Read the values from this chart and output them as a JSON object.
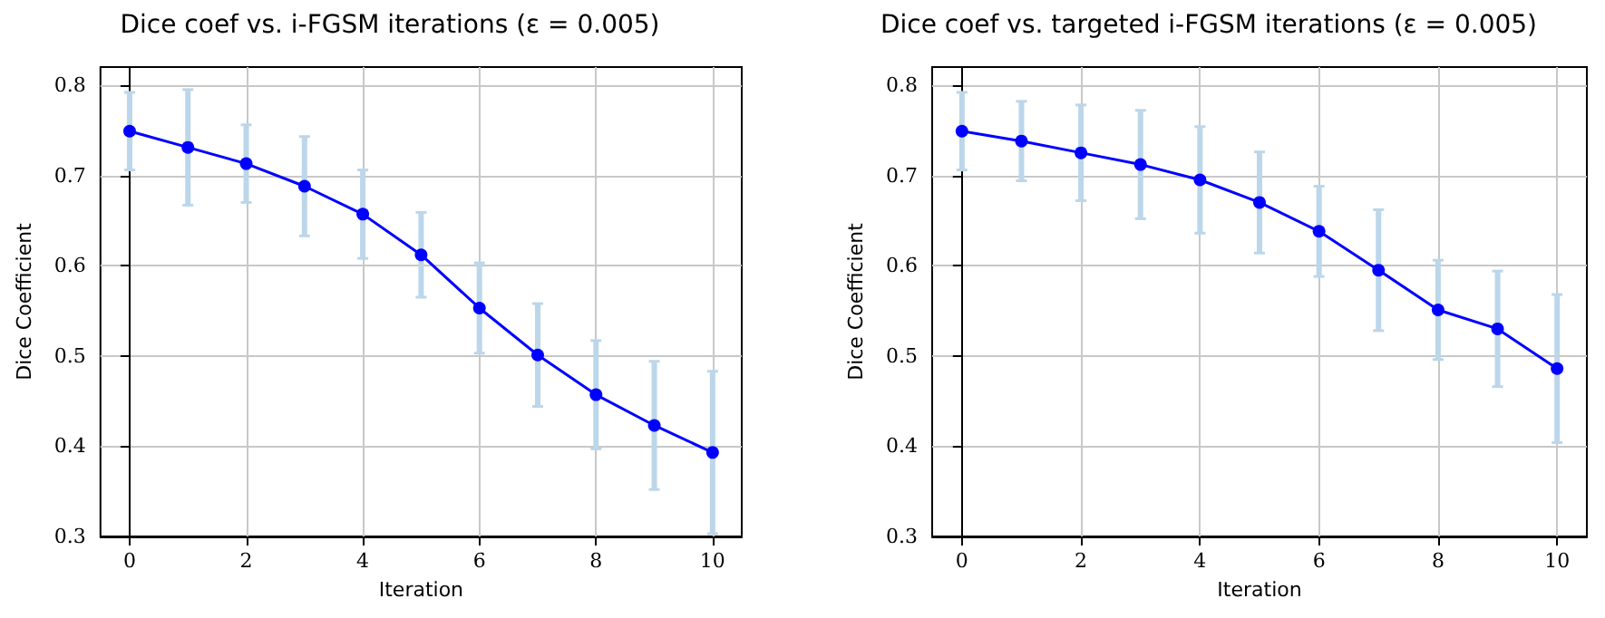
{
  "chart_data": [
    {
      "type": "line",
      "title": "Dice coef vs. i-FGSM iterations (ε = 0.005)",
      "xlabel": "Iteration",
      "ylabel": "Dice Coefficient",
      "x": [
        0,
        1,
        2,
        3,
        4,
        5,
        6,
        7,
        8,
        9,
        10
      ],
      "series": [
        {
          "color": "#0000ff",
          "values": [
            0.749,
            0.731,
            0.713,
            0.688,
            0.657,
            0.612,
            0.553,
            0.501,
            0.457,
            0.423,
            0.393
          ],
          "errors": [
            0.043,
            0.064,
            0.043,
            0.055,
            0.049,
            0.047,
            0.05,
            0.057,
            0.06,
            0.071,
            0.09
          ]
        }
      ],
      "xlim": [
        -0.5,
        10.5
      ],
      "xticks": [
        0,
        2,
        4,
        6,
        8,
        10
      ],
      "ylim": [
        0.3,
        0.82
      ],
      "yticks": [
        0.3,
        0.4,
        0.5,
        0.6,
        0.7,
        0.8
      ],
      "grid": true,
      "marker": "circle",
      "line_style": "solid"
    },
    {
      "type": "line",
      "title": "Dice coef vs. targeted i-FGSM iterations (ε = 0.005)",
      "xlabel": "Iteration",
      "ylabel": "Dice Coefficient",
      "x": [
        0,
        1,
        2,
        3,
        4,
        5,
        6,
        7,
        8,
        9,
        10
      ],
      "series": [
        {
          "color": "#0000ff",
          "values": [
            0.749,
            0.738,
            0.725,
            0.712,
            0.695,
            0.67,
            0.638,
            0.595,
            0.551,
            0.53,
            0.486
          ],
          "errors": [
            0.043,
            0.044,
            0.053,
            0.06,
            0.059,
            0.056,
            0.05,
            0.067,
            0.055,
            0.064,
            0.082
          ]
        }
      ],
      "xlim": [
        -0.5,
        10.5
      ],
      "xticks": [
        0,
        2,
        4,
        6,
        8,
        10
      ],
      "ylim": [
        0.3,
        0.82
      ],
      "yticks": [
        0.3,
        0.4,
        0.5,
        0.6,
        0.7,
        0.8
      ],
      "grid": true,
      "marker": "circle",
      "line_style": "solid"
    }
  ]
}
